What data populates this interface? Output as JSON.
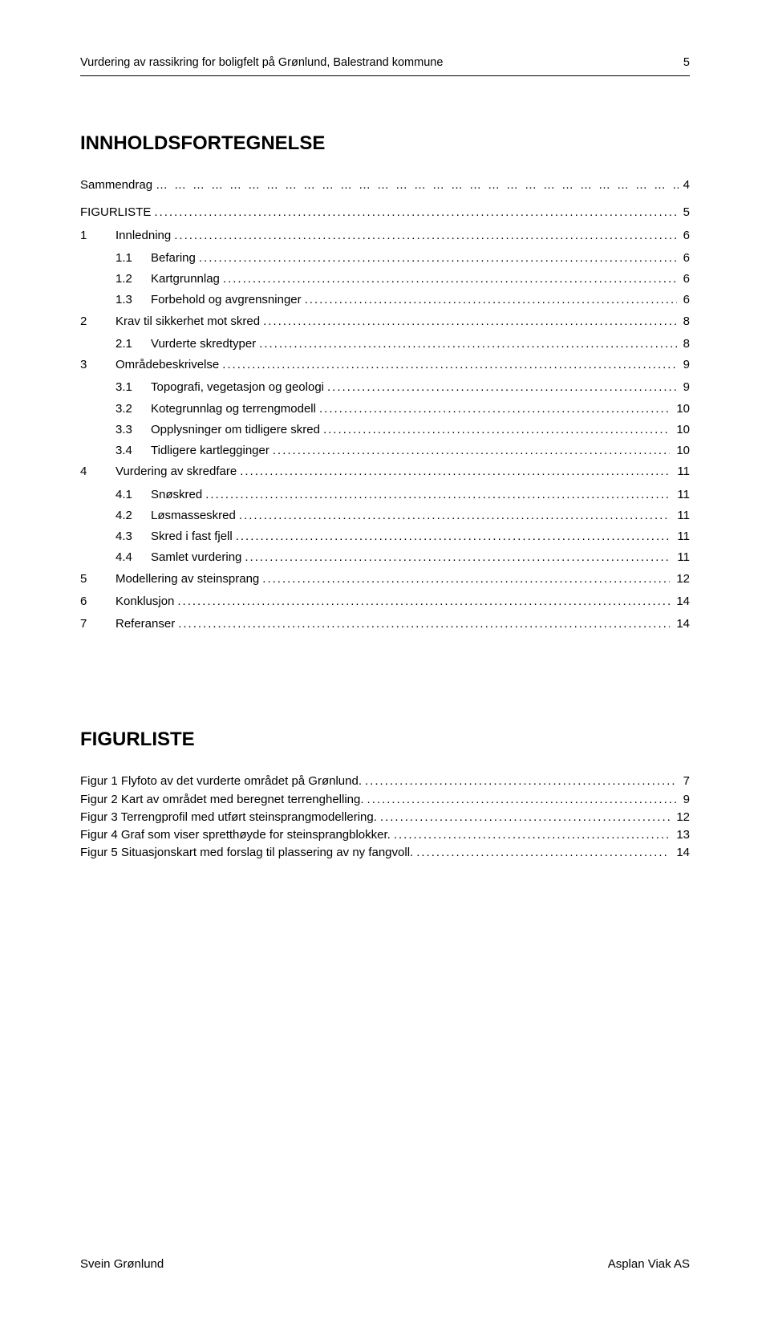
{
  "header": {
    "title": "Vurdering av rassikring for boligfelt på Grønlund, Balestrand kommune",
    "page_number": "5"
  },
  "toc_title": "INNHOLDSFORTEGNELSE",
  "sammendrag": {
    "label": "Sammendrag",
    "page": "4"
  },
  "toc": [
    {
      "level": 0,
      "num": "",
      "label": "FIGURLISTE",
      "page": "5"
    },
    {
      "level": 0,
      "num": "1",
      "label": "Innledning",
      "page": "6"
    },
    {
      "level": 1,
      "num": "1.1",
      "label": "Befaring",
      "page": "6"
    },
    {
      "level": 1,
      "num": "1.2",
      "label": "Kartgrunnlag",
      "page": "6"
    },
    {
      "level": 1,
      "num": "1.3",
      "label": "Forbehold og avgrensninger",
      "page": "6"
    },
    {
      "level": 0,
      "num": "2",
      "label": "Krav til sikkerhet mot skred",
      "page": "8"
    },
    {
      "level": 1,
      "num": "2.1",
      "label": "Vurderte skredtyper",
      "page": "8"
    },
    {
      "level": 0,
      "num": "3",
      "label": "Områdebeskrivelse",
      "page": "9"
    },
    {
      "level": 1,
      "num": "3.1",
      "label": "Topografi, vegetasjon og geologi",
      "page": "9"
    },
    {
      "level": 1,
      "num": "3.2",
      "label": "Kotegrunnlag og terrengmodell",
      "page": "10"
    },
    {
      "level": 1,
      "num": "3.3",
      "label": "Opplysninger om tidligere skred",
      "page": "10"
    },
    {
      "level": 1,
      "num": "3.4",
      "label": "Tidligere kartlegginger",
      "page": "10"
    },
    {
      "level": 0,
      "num": "4",
      "label": "Vurdering av skredfare",
      "page": "11"
    },
    {
      "level": 1,
      "num": "4.1",
      "label": "Snøskred",
      "page": "11"
    },
    {
      "level": 1,
      "num": "4.2",
      "label": "Løsmasseskred",
      "page": "11"
    },
    {
      "level": 1,
      "num": "4.3",
      "label": "Skred i fast fjell",
      "page": "11"
    },
    {
      "level": 1,
      "num": "4.4",
      "label": "Samlet vurdering",
      "page": "11"
    },
    {
      "level": 0,
      "num": "5",
      "label": "Modellering av steinsprang",
      "page": "12"
    },
    {
      "level": 0,
      "num": "6",
      "label": "Konklusjon",
      "page": "14"
    },
    {
      "level": 0,
      "num": "7",
      "label": "Referanser",
      "page": "14"
    }
  ],
  "figurliste_title": "FIGURLISTE",
  "figures": [
    {
      "label": "Figur 1 Flyfoto av det vurderte området på Grønlund.",
      "page": "7"
    },
    {
      "label": "Figur 2 Kart av området med beregnet terrenghelling.",
      "page": "9"
    },
    {
      "label": "Figur 3 Terrengprofil med utført steinsprangmodellering.",
      "page": "12"
    },
    {
      "label": "Figur 4 Graf som viser spretthøyde for steinsprangblokker.",
      "page": "13"
    },
    {
      "label": "Figur 5 Situasjonskart med forslag til plassering av ny fangvoll.",
      "page": "14"
    }
  ],
  "footer": {
    "left": "Svein Grønlund",
    "right": "Asplan Viak AS"
  }
}
